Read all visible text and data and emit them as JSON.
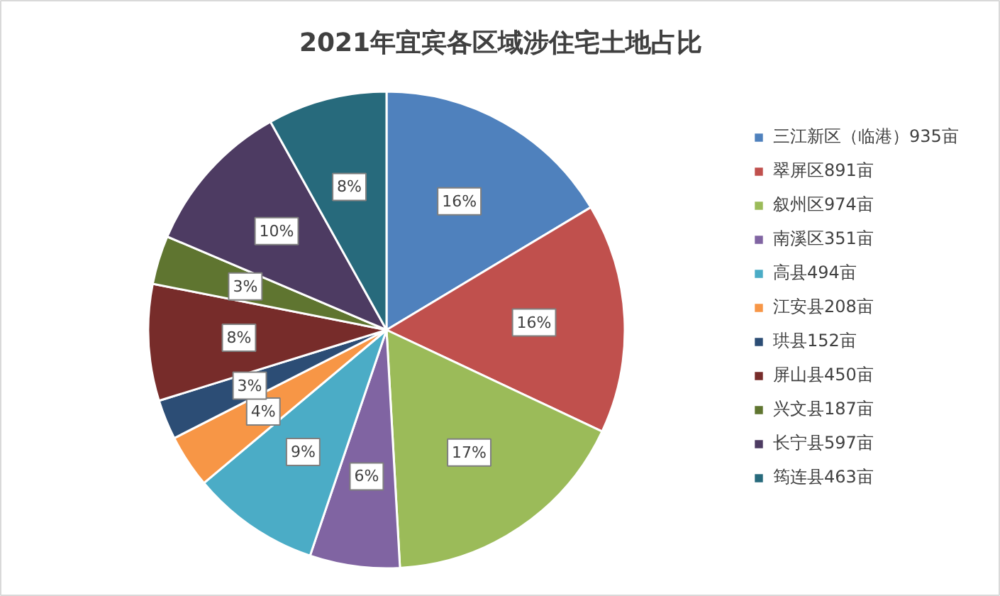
{
  "chart_data": {
    "type": "pie",
    "title": "2021年宜宾各区域涉住宅土地占比",
    "categories": [
      "三江新区（临港）935亩",
      "翠屏区891亩",
      "叙州区974亩",
      "南溪区351亩",
      "高县494亩",
      "江安县208亩",
      "珙县152亩",
      "屏山县450亩",
      "兴文县187亩",
      "长宁县597亩",
      "筠连县463亩"
    ],
    "values": [
      16.4,
      15.6,
      17.1,
      6.1,
      8.7,
      3.6,
      2.7,
      7.9,
      3.3,
      10.5,
      8.1
    ],
    "colors": [
      "#4f81bd",
      "#c0504d",
      "#9bbb59",
      "#8064a2",
      "#4bacc6",
      "#f79646",
      "#2c4d75",
      "#772c2a",
      "#5f7530",
      "#4d3b62",
      "#276a7c"
    ],
    "value_labels": [
      "16%",
      "16%",
      "17%",
      "6%",
      "9%",
      "4%",
      "3%",
      "8%",
      "3%",
      "10%",
      "8%"
    ],
    "legend": "right"
  }
}
